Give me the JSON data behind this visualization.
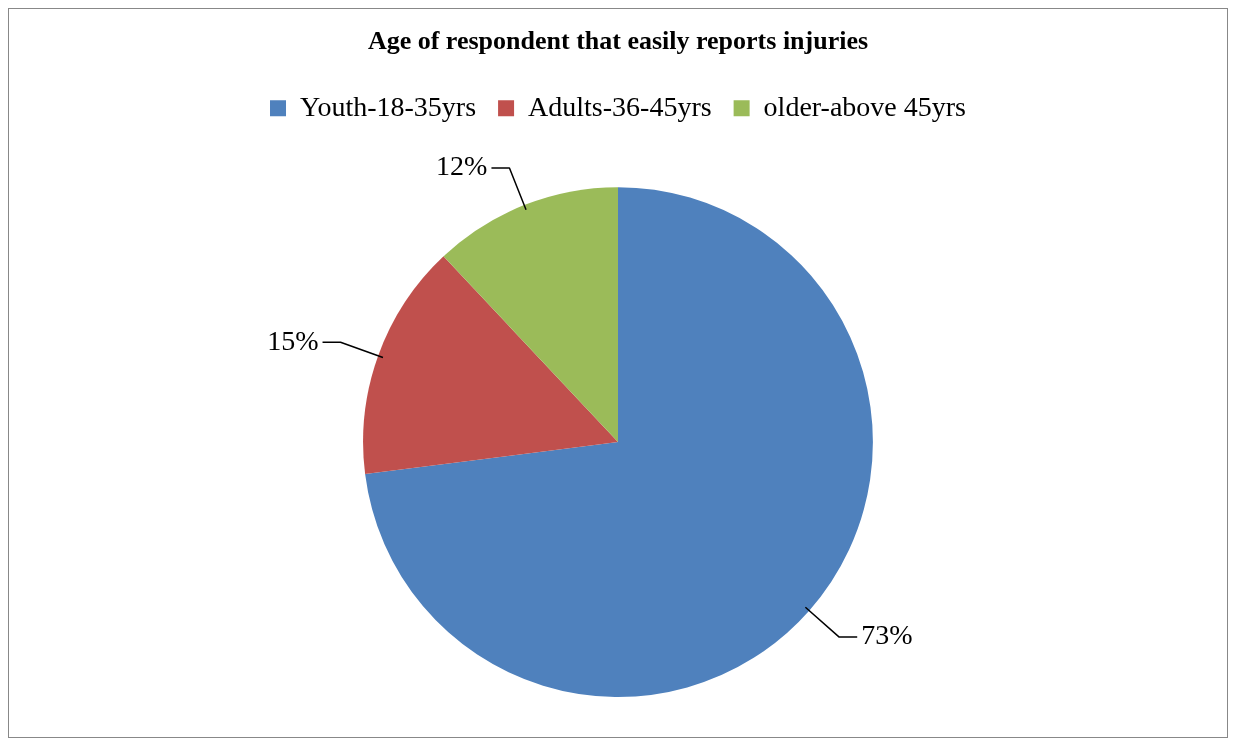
{
  "chart_data": {
    "type": "pie",
    "title": "Age of respondent that easily reports injuries",
    "categories": [
      "Youth-18-35yrs",
      "Adults-36-45yrs",
      "older-above 45yrs"
    ],
    "values": [
      73,
      15,
      12
    ],
    "colors": [
      "#4f81bd",
      "#c0504d",
      "#9bbb59"
    ],
    "value_labels": [
      "73%",
      "15%",
      "12%"
    ],
    "legend": "top"
  }
}
